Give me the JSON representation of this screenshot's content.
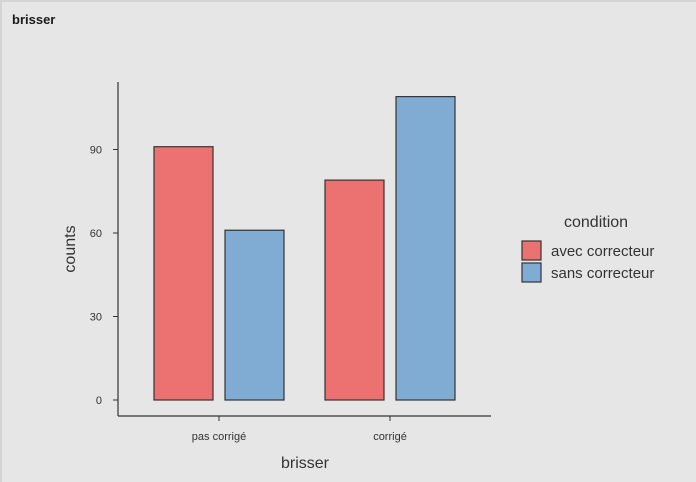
{
  "panel": {
    "title": "brisser"
  },
  "chart_data": {
    "type": "bar",
    "categories": [
      "pas corrigé",
      "corrigé"
    ],
    "series": [
      {
        "name": "avec correcteur",
        "color": "#ec7171",
        "values": [
          91,
          79
        ]
      },
      {
        "name": "sans correcteur",
        "color": "#80acd4",
        "values": [
          61,
          109
        ]
      }
    ],
    "xlabel": "brisser",
    "ylabel": "counts",
    "ylim": [
      0,
      114
    ],
    "yticks": [
      0,
      30,
      60,
      90
    ],
    "legend": {
      "title": "condition",
      "position": "right"
    },
    "grid": false
  }
}
